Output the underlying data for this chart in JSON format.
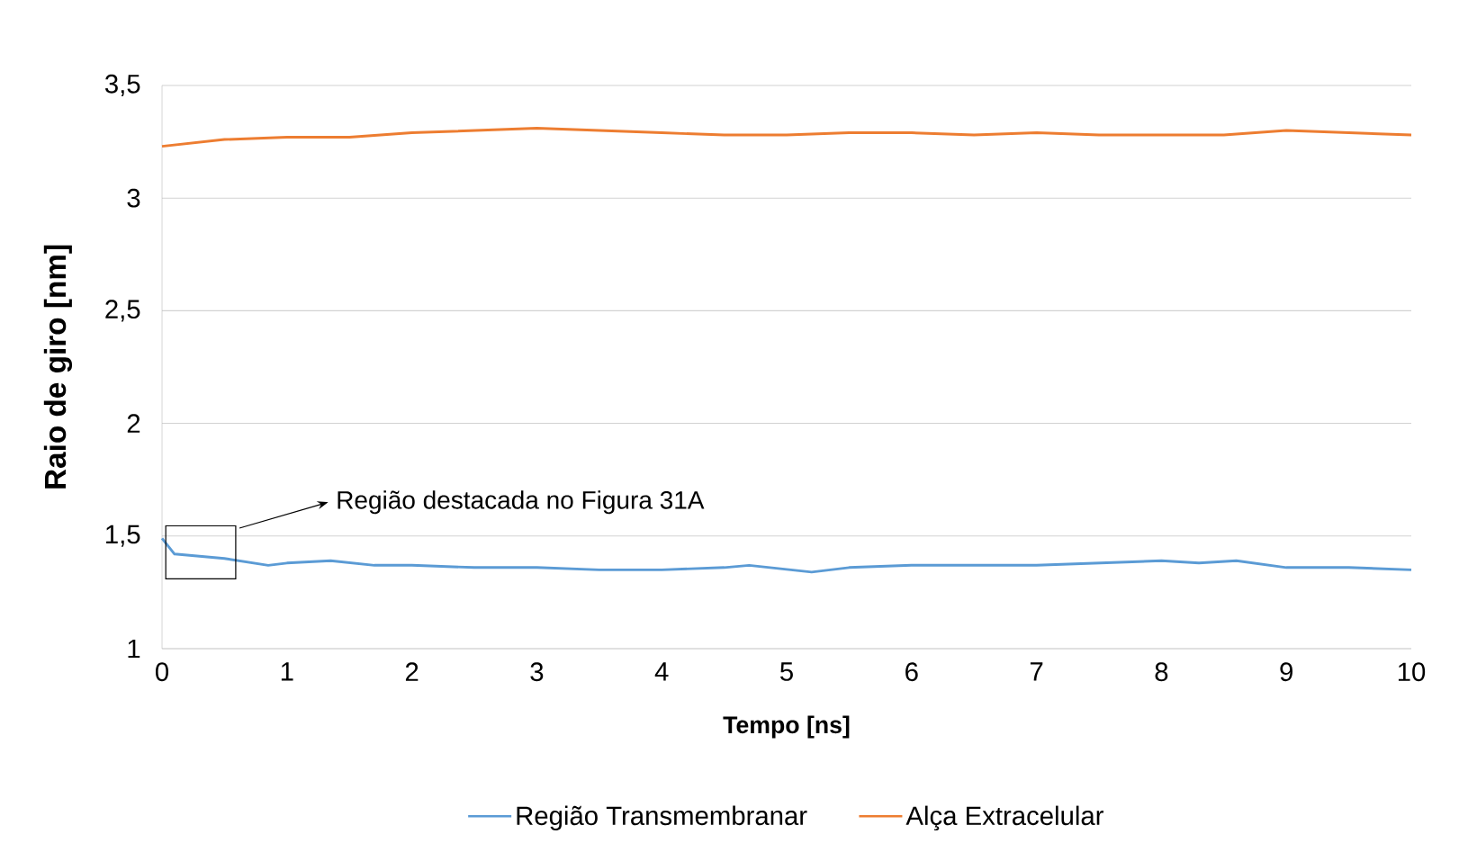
{
  "chart_data": {
    "type": "line",
    "xlabel": "Tempo [ns]",
    "ylabel": "Raio de giro [nm]",
    "xlim": [
      0,
      10
    ],
    "ylim": [
      1,
      3.5
    ],
    "xticks": [
      0,
      1,
      2,
      3,
      4,
      5,
      6,
      7,
      8,
      9,
      10
    ],
    "yticks": [
      {
        "value": 1,
        "label": "1"
      },
      {
        "value": 1.5,
        "label": "1,5"
      },
      {
        "value": 2,
        "label": "2"
      },
      {
        "value": 2.5,
        "label": "2,5"
      },
      {
        "value": 3,
        "label": "3"
      },
      {
        "value": 3.5,
        "label": "3,5"
      }
    ],
    "grid": "y",
    "legend": "bottom",
    "line_style": "solid",
    "marker": "none",
    "annotations": [
      "Região destacada no Figura 31A"
    ],
    "series": [
      {
        "name": "Região Transmembranar",
        "color": "#5b9bd5",
        "x": [
          0,
          0.1,
          0.3,
          0.5,
          0.85,
          1,
          1.35,
          1.7,
          2,
          2.5,
          3,
          3.5,
          4,
          4.5,
          4.7,
          5.2,
          5.5,
          6,
          6.5,
          7,
          7.5,
          8,
          8.3,
          8.6,
          9,
          9.5,
          10
        ],
        "values": [
          1.49,
          1.42,
          1.41,
          1.4,
          1.37,
          1.38,
          1.39,
          1.37,
          1.37,
          1.36,
          1.36,
          1.35,
          1.35,
          1.36,
          1.37,
          1.34,
          1.36,
          1.37,
          1.37,
          1.37,
          1.38,
          1.39,
          1.38,
          1.39,
          1.36,
          1.36,
          1.35
        ]
      },
      {
        "name": "Alça Extracelular",
        "color": "#ed7d31",
        "x": [
          0,
          0.5,
          1,
          1.5,
          2,
          2.5,
          3,
          3.5,
          4,
          4.5,
          5,
          5.5,
          6,
          6.5,
          7,
          7.5,
          8,
          8.5,
          9,
          9.5,
          10
        ],
        "values": [
          3.23,
          3.26,
          3.27,
          3.27,
          3.29,
          3.3,
          3.31,
          3.3,
          3.29,
          3.28,
          3.28,
          3.29,
          3.29,
          3.28,
          3.29,
          3.28,
          3.28,
          3.28,
          3.3,
          3.29,
          3.28
        ]
      }
    ]
  }
}
